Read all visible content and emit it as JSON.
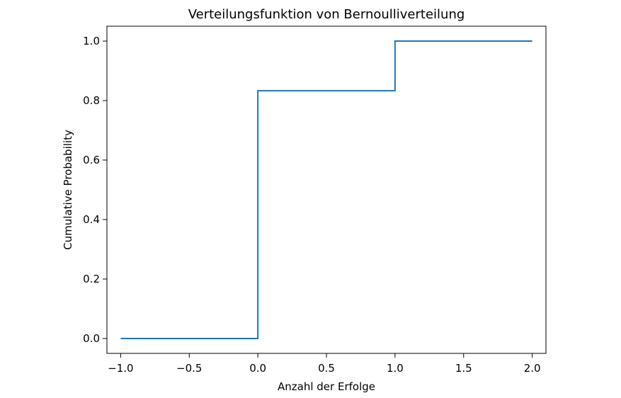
{
  "chart_data": {
    "type": "line",
    "title": "Verteilungsfunktion von Bernoulliverteilung",
    "xlabel": "Anzahl der Erfolge",
    "ylabel": "Cumulative Probability",
    "xlim": [
      -1.1,
      2.1
    ],
    "ylim": [
      -0.05,
      1.05
    ],
    "x_ticks": [
      -1.0,
      -0.5,
      0.0,
      0.5,
      1.0,
      1.5,
      2.0
    ],
    "x_tick_labels": [
      "−1.0",
      "−0.5",
      "0.0",
      "0.5",
      "1.0",
      "1.5",
      "2.0"
    ],
    "y_ticks": [
      0.0,
      0.2,
      0.4,
      0.6,
      0.8,
      1.0
    ],
    "y_tick_labels": [
      "0.0",
      "0.2",
      "0.4",
      "0.6",
      "0.8",
      "1.0"
    ],
    "grid": false,
    "series": [
      {
        "color": "#1f77b4",
        "drawstyle": "steps-post",
        "x": [
          -1.0,
          0.0,
          1.0,
          2.0
        ],
        "y": [
          0.0,
          0.833,
          1.0,
          1.0
        ]
      }
    ]
  }
}
